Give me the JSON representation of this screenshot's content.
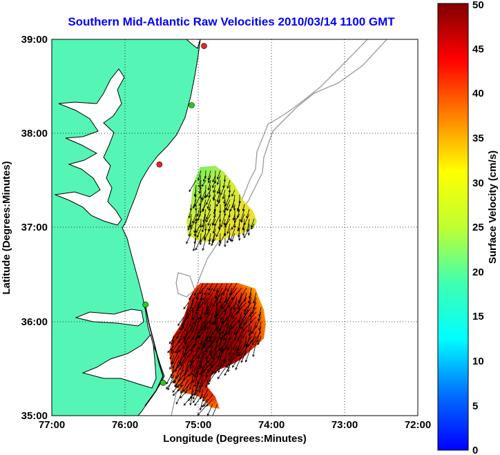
{
  "title": "Southern Mid-Atlantic Raw Velocities 2010/03/14 1100 GMT",
  "map": {
    "xlabel": "Longitude (Degrees:Minutes)",
    "ylabel": "Latitude (Degrees:Minutes)",
    "lon_ticks": [
      "77:00",
      "76:00",
      "75:00",
      "74:00",
      "73:00",
      "72:00"
    ],
    "lat_ticks": [
      "39:00",
      "38:00",
      "37:00",
      "36:00",
      "35:00"
    ],
    "lon_range": [
      -77,
      -72
    ],
    "lat_range": [
      35,
      39
    ],
    "grid": true,
    "colors": {
      "land": "#55f5b5",
      "coastline": "#000000",
      "bathymetry": "#999999",
      "grid": "#000000",
      "station_green": "#22cc22",
      "station_red": "#ee2222"
    },
    "stations": [
      {
        "lon": -74.92,
        "lat": 38.93,
        "status": "red"
      },
      {
        "lon": -75.09,
        "lat": 38.3,
        "status": "green"
      },
      {
        "lon": -75.53,
        "lat": 37.67,
        "status": "red"
      },
      {
        "lon": -75.72,
        "lat": 36.18,
        "status": "green"
      },
      {
        "lon": -75.48,
        "lat": 35.35,
        "status": "green"
      }
    ]
  },
  "colorbar": {
    "label": "Surface Velocity (cm/s)",
    "ticks": [
      "0",
      "5",
      "10",
      "15",
      "20",
      "25",
      "30",
      "35",
      "40",
      "45",
      "50"
    ],
    "min": 0,
    "max": 50,
    "colormap": "jet"
  }
}
